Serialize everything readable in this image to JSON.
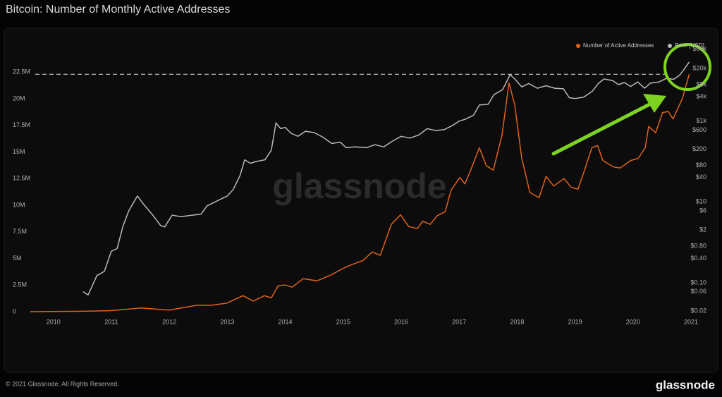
{
  "chart_data": {
    "type": "line",
    "title": "Bitcoin: Number of Monthly Active Addresses",
    "watermark": "glassnode",
    "footer": "© 2021 Glassnode. All Rights Reserved.",
    "brand": "glassnode",
    "reference_line": 22300000,
    "xlim": [
      2009.59,
      2021
    ],
    "xticks": [
      2010,
      2011,
      2012,
      2013,
      2014,
      2015,
      2016,
      2017,
      2018,
      2019,
      2020,
      2021
    ],
    "ylim": [
      -200000,
      25300000
    ],
    "yticks": [
      0,
      {
        "value": 2500000,
        "label": "2.5M"
      },
      {
        "value": 5000000,
        "label": "5M"
      },
      {
        "value": 7500000,
        "label": "7.5M"
      },
      {
        "value": 10000000,
        "label": "10M"
      },
      {
        "value": 12500000,
        "label": "12.5M"
      },
      {
        "value": 15000000,
        "label": "15M"
      },
      {
        "value": 17500000,
        "label": "17.5M"
      },
      {
        "value": 20000000,
        "label": "20M"
      },
      {
        "value": 22500000,
        "label": "22.5M"
      }
    ],
    "y2lim": [
      0.017,
      89000
    ],
    "y2log": true,
    "y2ticks": [
      {
        "value": 60000,
        "label": "$60k"
      },
      {
        "value": 20000,
        "label": "$20k"
      },
      {
        "value": 8000,
        "label": "$8k"
      },
      {
        "value": 4000,
        "label": "$4k"
      },
      {
        "value": 1000,
        "label": "$1k"
      },
      {
        "value": 600,
        "label": "$600"
      },
      {
        "value": 200,
        "label": "$200"
      },
      {
        "value": 80,
        "label": "$80"
      },
      {
        "value": 40,
        "label": "$40"
      },
      {
        "value": 10,
        "label": "$10"
      },
      {
        "value": 6,
        "label": "$6"
      },
      {
        "value": 2,
        "label": "$2"
      },
      {
        "value": 0.8,
        "label": "$0.80"
      },
      {
        "value": 0.4,
        "label": "$0.40"
      },
      {
        "value": 0.1,
        "label": "$0.10"
      },
      {
        "value": 0.06,
        "label": "$0.06"
      },
      {
        "value": 0.02,
        "label": "$0.02"
      }
    ],
    "grid": false,
    "legend": "top-right",
    "series": [
      {
        "name": "Number of Active Addresses",
        "color": "#e0611a",
        "x": [
          2009.6,
          2010,
          2010.51,
          2011.0,
          2011.51,
          2012.0,
          2012.48,
          2012.73,
          2012.99,
          2013.27,
          2013.45,
          2013.64,
          2013.76,
          2013.88,
          2014.0,
          2014.12,
          2014.31,
          2014.55,
          2014.79,
          2015.01,
          2015.16,
          2015.34,
          2015.5,
          2015.64,
          2015.83,
          2015.99,
          2016.13,
          2016.28,
          2016.37,
          2016.5,
          2016.62,
          2016.76,
          2016.86,
          2017.01,
          2017.1,
          2017.2,
          2017.35,
          2017.47,
          2017.59,
          2017.74,
          2017.86,
          2017.96,
          2018.08,
          2018.22,
          2018.38,
          2018.5,
          2018.63,
          2018.81,
          2018.93,
          2019.05,
          2019.17,
          2019.29,
          2019.39,
          2019.48,
          2019.66,
          2019.78,
          2019.96,
          2020.09,
          2020.21,
          2020.27,
          2020.39,
          2020.51,
          2020.61,
          2020.69,
          2020.85,
          2020.97
        ],
        "values": [
          0,
          20000,
          40000,
          100000,
          350000,
          150000,
          600000,
          600000,
          800000,
          1500000,
          1000000,
          1500000,
          1300000,
          2450000,
          2500000,
          2300000,
          3100000,
          2900000,
          3450000,
          4100000,
          4450000,
          4800000,
          5600000,
          5300000,
          8200000,
          9100000,
          8000000,
          7800000,
          8500000,
          8200000,
          9000000,
          9400000,
          11400000,
          12600000,
          12000000,
          13300000,
          15400000,
          13700000,
          13300000,
          16600000,
          21500000,
          19400000,
          14400000,
          11200000,
          10700000,
          12700000,
          11800000,
          12500000,
          11700000,
          11500000,
          13400000,
          15400000,
          15600000,
          14200000,
          13600000,
          13500000,
          14200000,
          14400000,
          15400000,
          17400000,
          16800000,
          18700000,
          18800000,
          18100000,
          20000000,
          22300000
        ]
      },
      {
        "name": "Price [USD]",
        "color": "#b8b8b8",
        "axis": "y2",
        "x": [
          2010.51,
          2010.6,
          2010.75,
          2010.88,
          2011.0,
          2011.1,
          2011.2,
          2011.3,
          2011.45,
          2011.55,
          2011.7,
          2011.85,
          2011.92,
          2012.05,
          2012.2,
          2012.4,
          2012.55,
          2012.65,
          2012.85,
          2013.0,
          2013.1,
          2013.22,
          2013.3,
          2013.4,
          2013.5,
          2013.65,
          2013.76,
          2013.84,
          2013.92,
          2014.0,
          2014.1,
          2014.22,
          2014.35,
          2014.5,
          2014.65,
          2014.8,
          2014.95,
          2015.05,
          2015.2,
          2015.4,
          2015.55,
          2015.7,
          2015.85,
          2016.0,
          2016.15,
          2016.3,
          2016.45,
          2016.6,
          2016.75,
          2016.9,
          2017.0,
          2017.1,
          2017.25,
          2017.35,
          2017.5,
          2017.6,
          2017.75,
          2017.88,
          2017.96,
          2018.08,
          2018.2,
          2018.35,
          2018.5,
          2018.65,
          2018.8,
          2018.9,
          2019.0,
          2019.15,
          2019.3,
          2019.4,
          2019.5,
          2019.65,
          2019.75,
          2019.85,
          2019.96,
          2020.08,
          2020.2,
          2020.3,
          2020.45,
          2020.58,
          2020.7,
          2020.8,
          2020.88,
          2020.97
        ],
        "values": [
          0.06,
          0.05,
          0.15,
          0.19,
          0.6,
          0.7,
          2.5,
          6,
          14,
          9,
          5,
          2.6,
          2.4,
          4.7,
          4.3,
          4.7,
          5,
          8,
          11,
          14,
          20,
          45,
          110,
          90,
          100,
          110,
          190,
          900,
          650,
          700,
          500,
          420,
          560,
          520,
          400,
          280,
          300,
          220,
          230,
          220,
          260,
          230,
          320,
          420,
          380,
          450,
          650,
          580,
          620,
          800,
          1000,
          1100,
          1400,
          2500,
          2600,
          4500,
          6000,
          14000,
          11000,
          7000,
          8500,
          6500,
          7500,
          6500,
          6300,
          3800,
          3600,
          3900,
          5500,
          8500,
          11000,
          10000,
          8000,
          9000,
          7200,
          9300,
          6500,
          8700,
          9300,
          11500,
          10800,
          13500,
          19000,
          29000
        ]
      }
    ]
  }
}
